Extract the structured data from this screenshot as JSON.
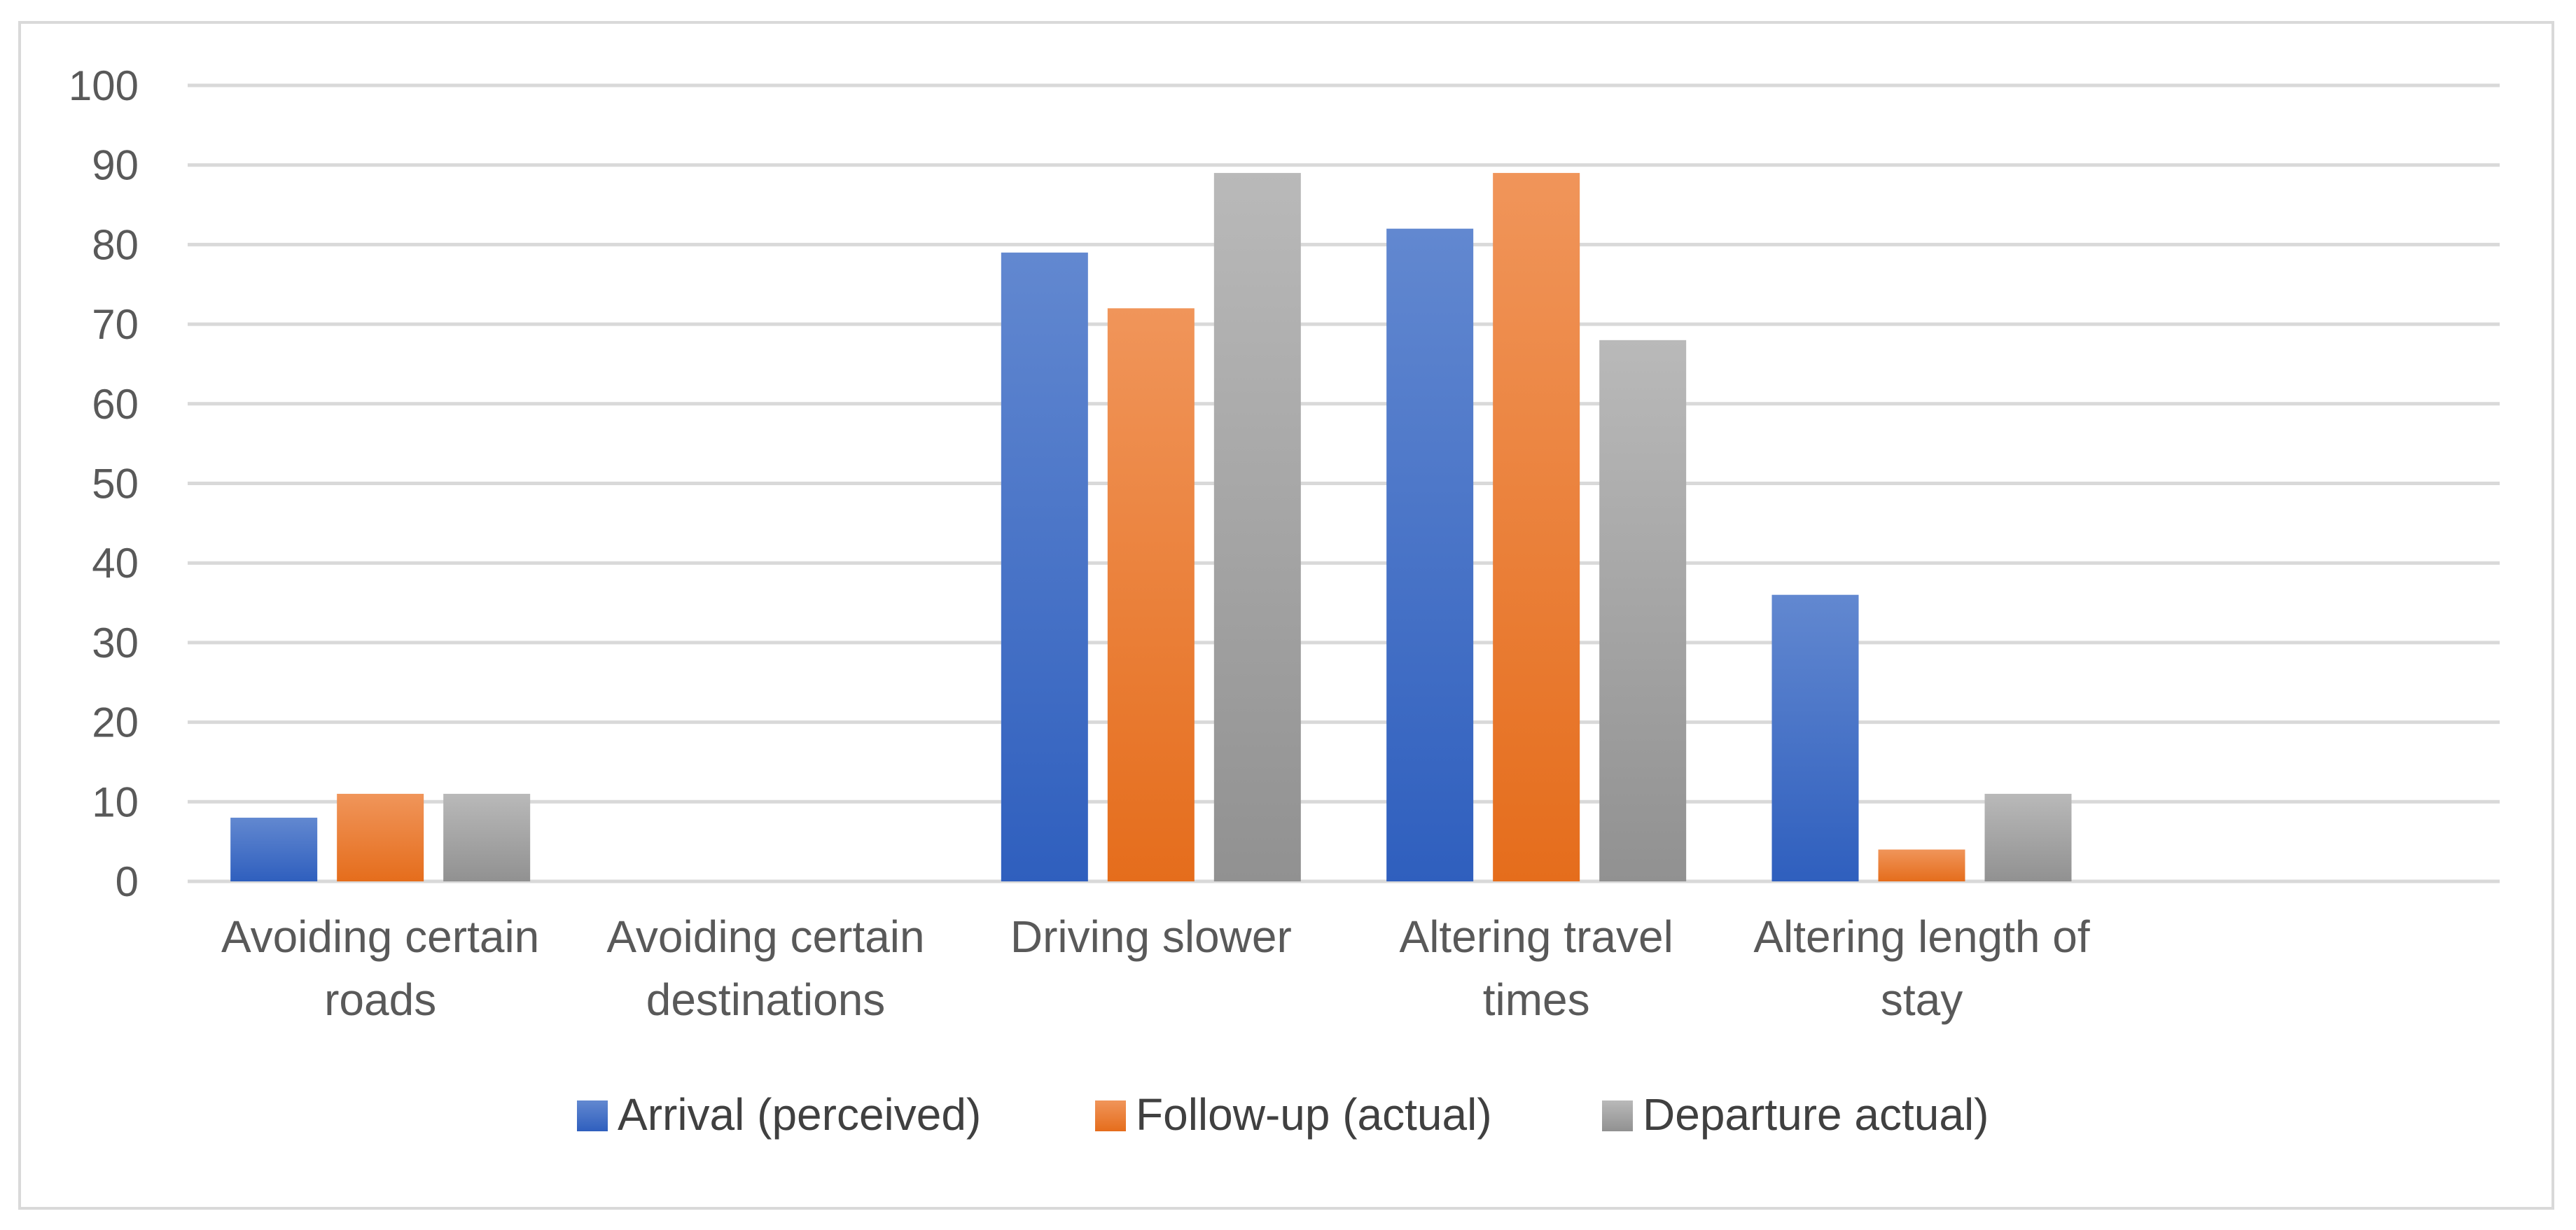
{
  "chart_data": {
    "type": "bar",
    "title": "",
    "xlabel": "",
    "ylabel": "",
    "ylim": [
      0,
      100
    ],
    "yticks": [
      0,
      10,
      20,
      30,
      40,
      50,
      60,
      70,
      80,
      90,
      100
    ],
    "grid": true,
    "legend_position": "bottom",
    "categories": [
      [
        "Avoiding certain",
        "roads"
      ],
      [
        "Avoiding certain",
        "destinations"
      ],
      [
        "Driving slower"
      ],
      [
        "Altering travel",
        "times"
      ],
      [
        "Altering length of",
        "stay"
      ]
    ],
    "series": [
      {
        "name": "Arrival (perceived)",
        "color": "#4472C4",
        "gradient": [
          "#6288d0",
          "#2f5fbe"
        ],
        "values": [
          8,
          null,
          79,
          82,
          36
        ]
      },
      {
        "name": "Follow-up (actual)",
        "color": "#ED7D31",
        "gradient": [
          "#f0955a",
          "#e56d1c"
        ],
        "values": [
          11,
          null,
          72,
          89,
          4
        ]
      },
      {
        "name": "Departure actual)",
        "color": "#A5A5A5",
        "gradient": [
          "#b9b9b9",
          "#919191"
        ],
        "values": [
          11,
          null,
          89,
          68,
          11
        ]
      }
    ]
  }
}
